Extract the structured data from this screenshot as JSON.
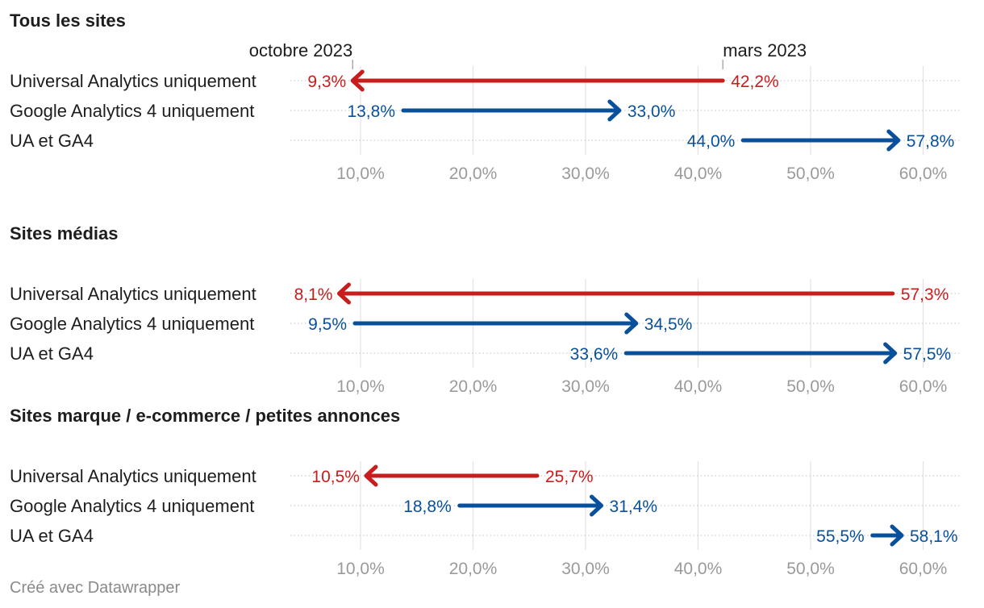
{
  "footer": "Créé avec Datawrapper",
  "colors": {
    "decrease": "#c71e1d",
    "increase": "#08509c",
    "grid": "#e2e2e2",
    "tick": "#9a9a9a"
  },
  "chart_data": {
    "type": "arrow-plot",
    "legend": {
      "start_label": "mars 2023",
      "end_label": "octobre 2023"
    },
    "xlim": [
      0,
      60
    ],
    "ticks": [
      10,
      20,
      30,
      40,
      50,
      60
    ],
    "tick_labels": [
      "10,0%",
      "20,0%",
      "30,0%",
      "40,0%",
      "50,0%",
      "60,0%"
    ],
    "panels": [
      {
        "title": "Tous les sites",
        "rows": [
          {
            "label": "Universal Analytics uniquement",
            "start": 42.2,
            "end": 9.3,
            "start_label": "42,2%",
            "end_label": "9,3%"
          },
          {
            "label": "Google Analytics 4 uniquement",
            "start": 13.8,
            "end": 33.0,
            "start_label": "13,8%",
            "end_label": "33,0%"
          },
          {
            "label": "UA et GA4",
            "start": 44.0,
            "end": 57.8,
            "start_label": "44,0%",
            "end_label": "57,8%"
          }
        ]
      },
      {
        "title": "Sites médias",
        "rows": [
          {
            "label": "Universal Analytics uniquement",
            "start": 57.3,
            "end": 8.1,
            "start_label": "57,3%",
            "end_label": "8,1%"
          },
          {
            "label": "Google Analytics 4 uniquement",
            "start": 9.5,
            "end": 34.5,
            "start_label": "9,5%",
            "end_label": "34,5%"
          },
          {
            "label": "UA et GA4",
            "start": 33.6,
            "end": 57.5,
            "start_label": "33,6%",
            "end_label": "57,5%"
          }
        ]
      },
      {
        "title": "Sites marque / e-commerce / petites annonces",
        "rows": [
          {
            "label": "Universal Analytics uniquement",
            "start": 25.7,
            "end": 10.5,
            "start_label": "25,7%",
            "end_label": "10,5%"
          },
          {
            "label": "Google Analytics 4 uniquement",
            "start": 18.8,
            "end": 31.4,
            "start_label": "18,8%",
            "end_label": "31,4%"
          },
          {
            "label": "UA et GA4",
            "start": 55.5,
            "end": 58.1,
            "start_label": "55,5%",
            "end_label": "58,1%"
          }
        ]
      }
    ]
  }
}
